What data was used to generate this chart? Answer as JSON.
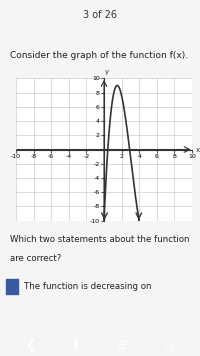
{
  "title": "Consider the graph of the function f(x).",
  "question": "Which two statements about the function\nare correct?",
  "answer_partial": "The function is decreasing on",
  "xlim": [
    -10,
    10
  ],
  "ylim": [
    -10,
    10
  ],
  "xticks": [
    -10,
    -8,
    -6,
    -4,
    -2,
    0,
    2,
    4,
    6,
    8,
    10
  ],
  "yticks": [
    -10,
    -8,
    -6,
    -4,
    -2,
    0,
    2,
    4,
    6,
    8,
    10
  ],
  "grid_color": "#cccccc",
  "curve_color": "#333333",
  "bg_color": "#ffffff",
  "axis_color": "#333333",
  "header_bg": "#f0f0f0",
  "header_text_color": "#333333",
  "nav_text": "3 of 26",
  "peak_x": 1,
  "peak_y": 9,
  "x_left_bound": 0,
  "x_right_bound": 4
}
